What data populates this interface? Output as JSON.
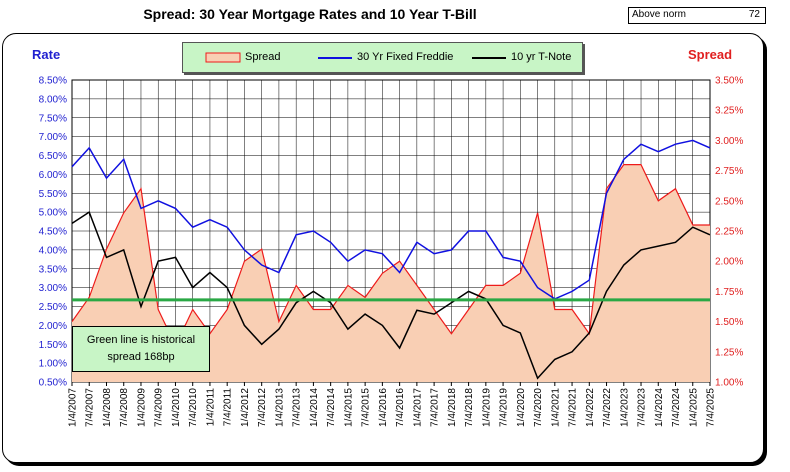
{
  "colors": {
    "mortgage": "#1010e0",
    "tnote": "#000000",
    "spread_fill": "#f9cfb4",
    "spread_line": "#ee1b1b",
    "norm_line": "#2aa845",
    "legend_bg": "#c8f5c6"
  },
  "header": {
    "title": "Spread:  30 Year Mortgage Rates and 10 Year T-Bill",
    "norm_label": "Above norm",
    "norm_value": "72"
  },
  "annotation": {
    "line1": "Green line is historical",
    "line2": "spread 168bp"
  },
  "chart_data": {
    "type": "line",
    "title": "Spread:  30 Year Mortgage Rates and 10 Year T-Bill",
    "y_left_label": "Rate",
    "y_right_label": "Spread",
    "legend": [
      "Spread",
      "30 Yr Fixed Freddie",
      "10 yr T-Note"
    ],
    "legend_placement": "top-center",
    "y_left_range": [
      0.5,
      8.5
    ],
    "y_right_range": [
      1.0,
      3.5
    ],
    "y_left_ticks": [
      "8.50%",
      "8.00%",
      "7.50%",
      "7.00%",
      "6.50%",
      "6.00%",
      "5.50%",
      "5.00%",
      "4.50%",
      "4.00%",
      "3.50%",
      "3.00%",
      "2.50%",
      "2.00%",
      "1.50%",
      "1.00%",
      "0.50%"
    ],
    "y_right_ticks": [
      "3.50%",
      "3.25%",
      "3.00%",
      "2.75%",
      "2.50%",
      "2.25%",
      "2.00%",
      "1.75%",
      "1.50%",
      "1.25%",
      "1.00%"
    ],
    "x_ticks": [
      "1/4/2007",
      "7/4/2007",
      "1/4/2008",
      "7/4/2008",
      "1/4/2009",
      "7/4/2009",
      "1/4/2010",
      "7/4/2010",
      "1/4/2011",
      "7/4/2011",
      "1/4/2012",
      "7/4/2012",
      "1/4/2013",
      "7/4/2013",
      "1/4/2014",
      "7/4/2014",
      "1/4/2015",
      "7/4/2015",
      "1/4/2016",
      "7/4/2016",
      "1/4/2017",
      "7/4/2017",
      "1/4/2018",
      "7/4/2018",
      "1/4/2019",
      "7/4/2019",
      "1/4/2020",
      "7/4/2020",
      "1/4/2021",
      "7/4/2021",
      "1/4/2022",
      "7/4/2022",
      "1/4/2023",
      "7/4/2023",
      "1/4/2024",
      "7/4/2024",
      "1/4/2025",
      "7/4/2025"
    ],
    "grid": true,
    "historical_spread": 1.68,
    "series": [
      {
        "name": "30 Yr Fixed Freddie",
        "axis": "left",
        "x": [
          "2007-01",
          "2007-07",
          "2008-01",
          "2008-07",
          "2009-01",
          "2009-07",
          "2010-01",
          "2010-07",
          "2011-01",
          "2011-07",
          "2012-01",
          "2012-07",
          "2013-01",
          "2013-07",
          "2014-01",
          "2014-07",
          "2015-01",
          "2015-07",
          "2016-01",
          "2016-07",
          "2017-01",
          "2017-07",
          "2018-01",
          "2018-07",
          "2019-01",
          "2019-07",
          "2020-01",
          "2020-07",
          "2021-01",
          "2021-07",
          "2022-01",
          "2022-07",
          "2023-01",
          "2023-07",
          "2024-01",
          "2024-07",
          "2025-01",
          "2025-07"
        ],
        "values": [
          6.2,
          6.7,
          5.9,
          6.4,
          5.1,
          5.3,
          5.1,
          4.6,
          4.8,
          4.6,
          4.0,
          3.6,
          3.4,
          4.4,
          4.5,
          4.2,
          3.7,
          4.0,
          3.9,
          3.4,
          4.2,
          3.9,
          4.0,
          4.5,
          4.5,
          3.8,
          3.7,
          3.0,
          2.7,
          2.9,
          3.2,
          5.5,
          6.4,
          6.8,
          6.6,
          6.8,
          6.9,
          6.7
        ]
      },
      {
        "name": "10 yr T-Note",
        "axis": "left",
        "x": [
          "2007-01",
          "2007-07",
          "2008-01",
          "2008-07",
          "2009-01",
          "2009-07",
          "2010-01",
          "2010-07",
          "2011-01",
          "2011-07",
          "2012-01",
          "2012-07",
          "2013-01",
          "2013-07",
          "2014-01",
          "2014-07",
          "2015-01",
          "2015-07",
          "2016-01",
          "2016-07",
          "2017-01",
          "2017-07",
          "2018-01",
          "2018-07",
          "2019-01",
          "2019-07",
          "2020-01",
          "2020-07",
          "2021-01",
          "2021-07",
          "2022-01",
          "2022-07",
          "2023-01",
          "2023-07",
          "2024-01",
          "2024-07",
          "2025-01",
          "2025-07"
        ],
        "values": [
          4.7,
          5.0,
          3.8,
          4.0,
          2.5,
          3.7,
          3.8,
          3.0,
          3.4,
          3.0,
          2.0,
          1.5,
          1.9,
          2.6,
          2.9,
          2.6,
          1.9,
          2.3,
          2.0,
          1.4,
          2.4,
          2.3,
          2.6,
          2.9,
          2.7,
          2.0,
          1.8,
          0.6,
          1.1,
          1.3,
          1.8,
          2.9,
          3.6,
          4.0,
          4.1,
          4.2,
          4.6,
          4.4
        ]
      },
      {
        "name": "Spread",
        "axis": "right",
        "x": [
          "2007-01",
          "2007-07",
          "2008-01",
          "2008-07",
          "2009-01",
          "2009-07",
          "2010-01",
          "2010-07",
          "2011-01",
          "2011-07",
          "2012-01",
          "2012-07",
          "2013-01",
          "2013-07",
          "2014-01",
          "2014-07",
          "2015-01",
          "2015-07",
          "2016-01",
          "2016-07",
          "2017-01",
          "2017-07",
          "2018-01",
          "2018-07",
          "2019-01",
          "2019-07",
          "2020-01",
          "2020-07",
          "2021-01",
          "2021-07",
          "2022-01",
          "2022-07",
          "2023-01",
          "2023-07",
          "2024-01",
          "2024-07",
          "2025-01",
          "2025-07"
        ],
        "values": [
          1.5,
          1.7,
          2.1,
          2.4,
          2.6,
          1.6,
          1.3,
          1.6,
          1.4,
          1.6,
          2.0,
          2.1,
          1.5,
          1.8,
          1.6,
          1.6,
          1.8,
          1.7,
          1.9,
          2.0,
          1.8,
          1.6,
          1.4,
          1.6,
          1.8,
          1.8,
          1.9,
          2.4,
          1.6,
          1.6,
          1.4,
          2.6,
          2.8,
          2.8,
          2.5,
          2.6,
          2.3,
          2.3
        ]
      }
    ]
  }
}
